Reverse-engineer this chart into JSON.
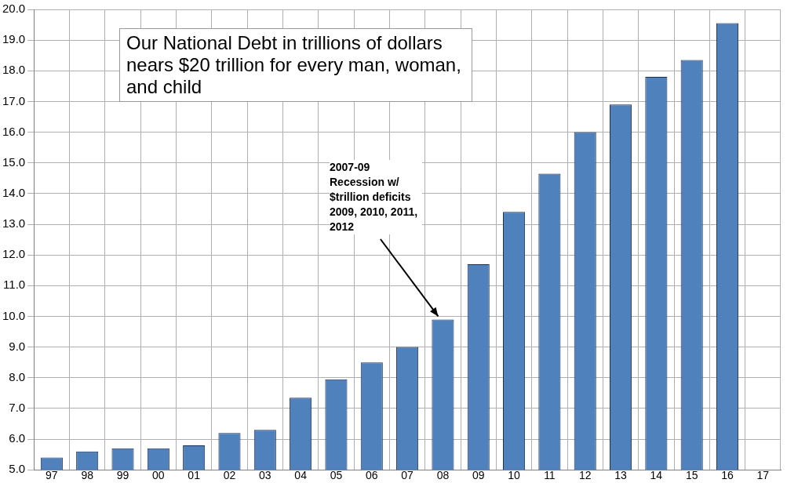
{
  "chart_data": {
    "type": "bar",
    "title": "Our National Debt in trillions of dollars nears $20 trillion for every man, woman, and child",
    "categories": [
      "97",
      "98",
      "99",
      "00",
      "01",
      "02",
      "03",
      "04",
      "05",
      "06",
      "07",
      "08",
      "09",
      "10",
      "11",
      "12",
      "13",
      "14",
      "15",
      "16",
      "17"
    ],
    "values": [
      5.4,
      5.6,
      5.7,
      5.7,
      5.8,
      6.2,
      6.3,
      7.35,
      7.95,
      8.5,
      9.0,
      9.9,
      11.7,
      13.4,
      14.65,
      16.0,
      16.9,
      17.8,
      18.35,
      19.55,
      null
    ],
    "color": "#4f81bd",
    "ylim": [
      5,
      20
    ],
    "yticks": [
      {
        "value": 5,
        "label": "5.0"
      },
      {
        "value": 6,
        "label": "6.0"
      },
      {
        "value": 7,
        "label": "7.0"
      },
      {
        "value": 8,
        "label": "8.0"
      },
      {
        "value": 9,
        "label": "9.0"
      },
      {
        "value": 10,
        "label": "10.0"
      },
      {
        "value": 11,
        "label": "11.0"
      },
      {
        "value": 12,
        "label": "12.0"
      },
      {
        "value": 13,
        "label": "13.0"
      },
      {
        "value": 14,
        "label": "14.0"
      },
      {
        "value": 15,
        "label": "15.0"
      },
      {
        "value": 16,
        "label": "16.0"
      },
      {
        "value": 17,
        "label": "17.0"
      },
      {
        "value": 18,
        "label": "18.0"
      },
      {
        "value": 19,
        "label": "19.0"
      },
      {
        "value": 20,
        "label": "20.0"
      }
    ],
    "grid": true,
    "annotations": [
      {
        "text": "2007-09 Recession w/ $trillion deficits 2009, 2010, 2011, 2012",
        "x": "08",
        "y": 9.9
      }
    ]
  }
}
